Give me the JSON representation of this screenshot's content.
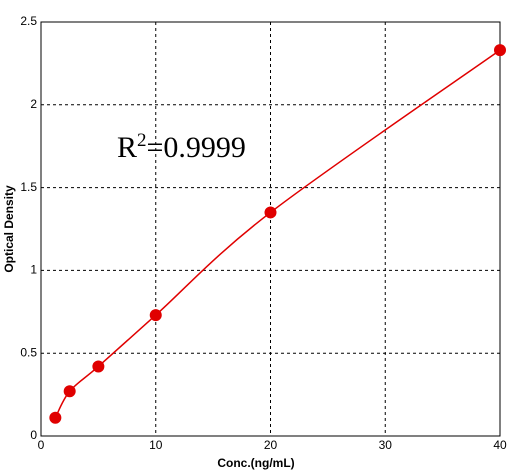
{
  "chart_data": {
    "type": "scatter",
    "annotation": {
      "base": "R",
      "sup": "2",
      "rest": "=0.9999"
    },
    "xlabel": "Conc.(ng/mL)",
    "ylabel": "Optical Density",
    "x": [
      1.25,
      2.5,
      5,
      10,
      20,
      40
    ],
    "values": [
      0.11,
      0.27,
      0.42,
      0.73,
      1.35,
      2.33
    ],
    "color": "#e00000",
    "xlim": [
      0,
      40
    ],
    "xticks": [
      0,
      10,
      20,
      30,
      40
    ],
    "ylim": [
      0,
      2.5
    ],
    "yticks": [
      0,
      0.5,
      1,
      1.5,
      2,
      2.5
    ],
    "grid": true
  }
}
